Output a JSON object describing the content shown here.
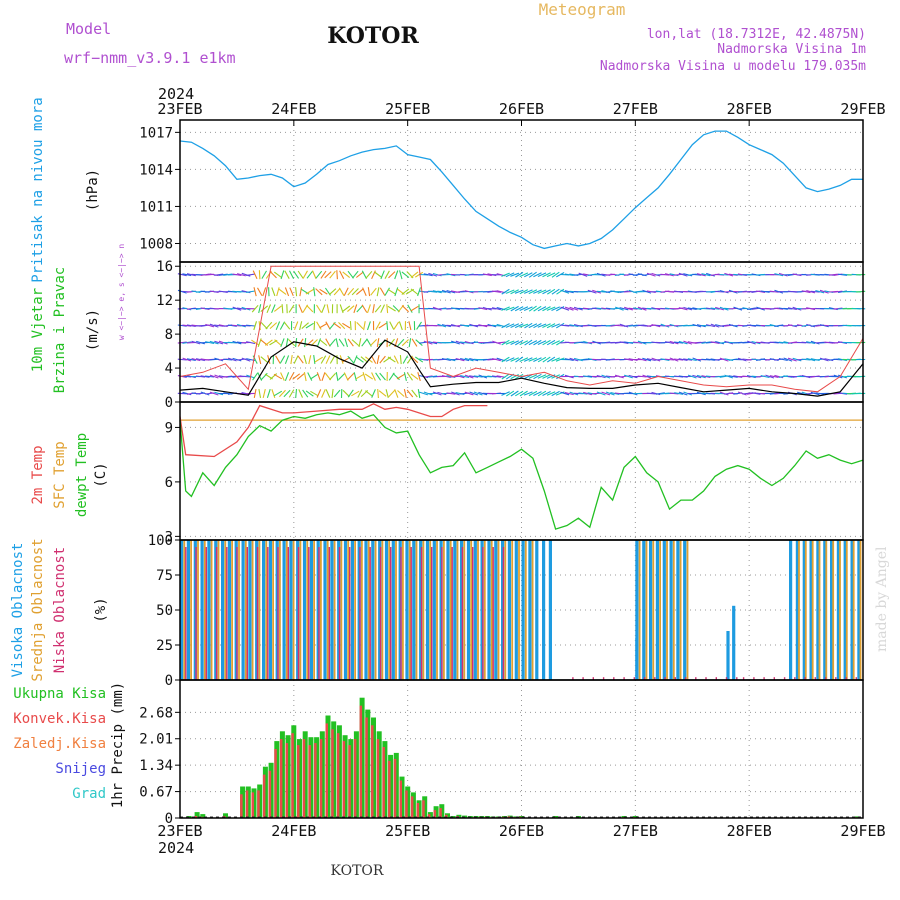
{
  "header": {
    "model_label": "Model",
    "model_value": "wrf−nmm_v3.9.1 e1km",
    "station": "KOTOR",
    "product": "Meteogram",
    "location_line": "lon,lat (18.7312E, 42.4875N)",
    "elevation_line": "Nadmorska Visina 1m",
    "model_elevation_line": "Nadmorska Visina u modelu 179.035m",
    "year_top": "2024",
    "year_bottom": "2024",
    "footer_station": "KOTOR",
    "watermark": "made by Angel"
  },
  "colors": {
    "pressure": "#1ea0e6",
    "t2m": "#e84a4a",
    "sfc_temp": "#e0a030",
    "dewpoint": "#22c022",
    "cloud_high": "#1e9be0",
    "cloud_mid": "#e0a030",
    "cloud_low": "#d03070",
    "precip_total": "#22c022",
    "precip_conv": "#e84a4a",
    "precip_frz": "#f08040",
    "snow": "#4a4ae0",
    "hail": "#30c8c8",
    "violet_text": "#b050d0",
    "gold_text": "#e6b860",
    "wind_speed": "#000000",
    "wind_gust": "#e84a4a"
  },
  "chart_data": [
    {
      "type": "line",
      "panel": "pressure",
      "ylabel_main": "Pritisak na nivou mora",
      "ylabel_unit": "(hPa)",
      "ylim": [
        1006.5,
        1018
      ],
      "yticks": [
        1008,
        1011,
        1014,
        1017
      ],
      "x_days": [
        0,
        0.1,
        0.2,
        0.3,
        0.4,
        0.5,
        0.6,
        0.7,
        0.8,
        0.9,
        1.0,
        1.1,
        1.2,
        1.3,
        1.4,
        1.5,
        1.6,
        1.7,
        1.8,
        1.9,
        2.0,
        2.1,
        2.2,
        2.3,
        2.4,
        2.5,
        2.6,
        2.7,
        2.8,
        2.9,
        3.0,
        3.1,
        3.2,
        3.3,
        3.4,
        3.5,
        3.6,
        3.7,
        3.8,
        3.9,
        4.0,
        4.1,
        4.2,
        4.3,
        4.4,
        4.5,
        4.6,
        4.7,
        4.8,
        4.9,
        5.0,
        5.1,
        5.2,
        5.3,
        5.4,
        5.5,
        5.6,
        5.7,
        5.8,
        5.9,
        6.0
      ],
      "values": [
        1016.3,
        1016.2,
        1015.7,
        1015.1,
        1014.3,
        1013.2,
        1013.3,
        1013.5,
        1013.6,
        1013.3,
        1012.6,
        1012.9,
        1013.6,
        1014.4,
        1014.7,
        1015.1,
        1015.4,
        1015.6,
        1015.7,
        1015.9,
        1015.2,
        1015.0,
        1014.8,
        1013.8,
        1012.7,
        1011.6,
        1010.6,
        1010.0,
        1009.4,
        1008.9,
        1008.5,
        1007.9,
        1007.6,
        1007.8,
        1008.0,
        1007.8,
        1008.0,
        1008.4,
        1009.1,
        1010.0,
        1010.9,
        1011.7,
        1012.5,
        1013.6,
        1014.8,
        1016.0,
        1016.8,
        1017.1,
        1017.1,
        1016.6,
        1016.0,
        1015.6,
        1015.2,
        1014.5,
        1013.5,
        1012.5,
        1012.2,
        1012.4,
        1012.7,
        1013.2,
        1013.2
      ]
    },
    {
      "type": "line",
      "panel": "wind",
      "ylabel_main": "10m Vjetar",
      "ylabel_sub": "Brzina i Pravac",
      "ylabel_unit": "(m/s)",
      "compass_label": "w <−|−> e, s <−|−> n",
      "ylim": [
        0,
        16.5
      ],
      "yticks": [
        0,
        4,
        8,
        12,
        16
      ],
      "x_days": [
        0,
        0.2,
        0.4,
        0.6,
        0.8,
        1.0,
        1.2,
        1.4,
        1.6,
        1.8,
        2.0,
        2.1,
        2.2,
        2.4,
        2.6,
        2.8,
        3.0,
        3.2,
        3.4,
        3.6,
        3.8,
        4.0,
        4.2,
        4.4,
        4.6,
        4.8,
        5.0,
        5.2,
        5.4,
        5.6,
        5.8,
        6.0
      ],
      "series": [
        {
          "name": "speed",
          "values": [
            1.4,
            1.6,
            1.2,
            0.8,
            5.3,
            7.1,
            6.6,
            5.1,
            4.0,
            7.3,
            5.9,
            3.8,
            1.8,
            2.1,
            2.3,
            2.3,
            2.8,
            2.2,
            1.7,
            1.6,
            1.6,
            2.0,
            2.2,
            1.7,
            1.2,
            1.4,
            1.6,
            1.2,
            1.0,
            0.7,
            1.2,
            4.5
          ]
        },
        {
          "name": "gust",
          "values": [
            3.0,
            3.5,
            4.5,
            1.5,
            16,
            16,
            16,
            16,
            16,
            16,
            16,
            16,
            4.0,
            3.0,
            4.0,
            3.5,
            3.0,
            3.5,
            2.5,
            2.0,
            2.5,
            2.2,
            3.0,
            2.5,
            2.0,
            1.8,
            2.0,
            2.0,
            1.5,
            1.2,
            3.0,
            7.5
          ]
        }
      ]
    },
    {
      "type": "line",
      "panel": "temperature",
      "ylabel_lines": [
        "2m Temp",
        "SFC Temp",
        "dewpt Temp"
      ],
      "ylabel_unit": "(C)",
      "ylim": [
        2.8,
        10.4
      ],
      "yticks": [
        3,
        6,
        9
      ],
      "sfc_temp_const": 9.4,
      "series": [
        {
          "name": "2m Temp",
          "x_days": [
            0,
            0.05,
            0.3,
            0.5,
            0.6,
            0.7,
            0.8,
            0.9,
            1.0,
            1.2,
            1.4,
            1.6,
            1.7,
            1.8,
            1.9,
            2.0,
            2.2,
            2.3,
            2.4,
            2.5,
            2.6,
            2.7
          ],
          "values": [
            9.6,
            7.5,
            7.4,
            8.2,
            9.0,
            10.2,
            10.0,
            9.8,
            9.8,
            9.9,
            10.0,
            10.0,
            10.3,
            10.0,
            10.1,
            10.0,
            9.6,
            9.6,
            10.0,
            10.2,
            10.2,
            10.2
          ]
        },
        {
          "name": "dewpt Temp",
          "x_days": [
            0,
            0.05,
            0.1,
            0.2,
            0.3,
            0.4,
            0.5,
            0.6,
            0.7,
            0.8,
            0.9,
            1.0,
            1.1,
            1.2,
            1.3,
            1.4,
            1.5,
            1.6,
            1.7,
            1.8,
            1.9,
            2.0,
            2.1,
            2.2,
            2.3,
            2.4,
            2.5,
            2.6,
            2.7,
            2.8,
            2.9,
            3.0,
            3.1,
            3.2,
            3.3,
            3.4,
            3.5,
            3.6,
            3.7,
            3.8,
            3.9,
            4.0,
            4.1,
            4.2,
            4.3,
            4.4,
            4.5,
            4.6,
            4.7,
            4.8,
            4.9,
            5.0,
            5.1,
            5.2,
            5.3,
            5.4,
            5.5,
            5.6,
            5.7,
            5.8,
            5.9,
            6.0
          ],
          "values": [
            9.4,
            5.5,
            5.2,
            6.5,
            5.8,
            6.8,
            7.5,
            8.5,
            9.1,
            8.8,
            9.4,
            9.6,
            9.5,
            9.7,
            9.8,
            9.7,
            9.9,
            9.5,
            9.7,
            9.0,
            8.7,
            8.8,
            7.5,
            6.5,
            6.8,
            6.9,
            7.6,
            6.5,
            6.8,
            7.1,
            7.4,
            7.8,
            7.3,
            5.5,
            3.4,
            3.6,
            4.0,
            3.5,
            5.7,
            5.0,
            6.8,
            7.4,
            6.5,
            6.0,
            4.5,
            5.0,
            5.0,
            5.5,
            6.3,
            6.7,
            6.9,
            6.7,
            6.2,
            5.8,
            6.2,
            6.9,
            7.7,
            7.3,
            7.5,
            7.2,
            7.0,
            7.2
          ]
        }
      ]
    },
    {
      "type": "bar",
      "panel": "clouds",
      "ylabel_lines": [
        "Visoka Oblacnost",
        "Srednja Oblacnost",
        "Niska Oblacnost"
      ],
      "ylabel_unit": "(%)",
      "ylim": [
        0,
        100
      ],
      "yticks": [
        0,
        25,
        50,
        75,
        100
      ],
      "high_cloud_segments": [
        {
          "from_day": 0.0,
          "to_day": 3.25,
          "value": 100
        },
        {
          "from_day": 4.0,
          "to_day": 4.45,
          "value": 100
        },
        {
          "from_day": 4.0,
          "to_day": 4.02,
          "value": 30
        },
        {
          "from_day": 4.8,
          "to_day": 4.85,
          "value": 35
        },
        {
          "from_day": 4.85,
          "to_day": 4.88,
          "value": 53
        },
        {
          "from_day": 5.35,
          "to_day": 6.0,
          "value": 100
        }
      ],
      "mid_cloud_segments": [
        {
          "from_day": 0.0,
          "to_day": 3.15,
          "value": 100
        },
        {
          "from_day": 4.0,
          "to_day": 4.45,
          "value": 100
        },
        {
          "from_day": 5.4,
          "to_day": 6.0,
          "value": 100
        }
      ],
      "low_cloud_segments": [
        {
          "from_day": 0.0,
          "to_day": 2.9,
          "value": 95
        },
        {
          "from_day": 3.4,
          "to_day": 4.9,
          "value": 2
        },
        {
          "from_day": 4.9,
          "to_day": 6.0,
          "value": 2
        }
      ]
    },
    {
      "type": "bar",
      "panel": "precipitation",
      "legend": [
        "Ukupna Kisa",
        "Konvek.Kisa",
        "Zaledj.Kisa",
        "Snijeg",
        "Grad"
      ],
      "ylabel_unit": "1hr Precip (mm)",
      "ylim": [
        0,
        3.5
      ],
      "yticks": [
        0,
        0.67,
        1.34,
        2.01,
        2.68
      ],
      "x_days": [
        0.08,
        0.15,
        0.2,
        0.4,
        0.55,
        0.6,
        0.65,
        0.7,
        0.75,
        0.8,
        0.85,
        0.9,
        0.95,
        1.0,
        1.05,
        1.1,
        1.15,
        1.2,
        1.25,
        1.3,
        1.35,
        1.4,
        1.45,
        1.5,
        1.55,
        1.6,
        1.65,
        1.7,
        1.75,
        1.8,
        1.85,
        1.9,
        1.95,
        2.0,
        2.05,
        2.1,
        2.15,
        2.2,
        2.25,
        2.3,
        2.35,
        2.4,
        2.45,
        2.5,
        2.55,
        2.6,
        2.65,
        2.7,
        2.75,
        2.8,
        2.85,
        2.9,
        2.95,
        3.0,
        3.3,
        3.5,
        3.9,
        4.0,
        5.95
      ],
      "series": [
        {
          "name": "Ukupna Kisa",
          "values": [
            0.05,
            0.15,
            0.1,
            0.12,
            0.8,
            0.8,
            0.75,
            0.85,
            1.3,
            1.4,
            1.95,
            2.2,
            2.1,
            2.35,
            2.0,
            2.2,
            2.05,
            2.05,
            2.2,
            2.6,
            2.45,
            2.35,
            2.1,
            2.0,
            2.2,
            3.05,
            2.75,
            2.55,
            2.2,
            1.95,
            1.6,
            1.65,
            1.05,
            0.8,
            0.65,
            0.45,
            0.55,
            0.15,
            0.3,
            0.35,
            0.12,
            0.05,
            0.08,
            0.06,
            0.05,
            0.05,
            0.05,
            0.05,
            0.04,
            0.04,
            0.05,
            0.06,
            0.04,
            0.05,
            0.05,
            0.05,
            0.05,
            0.05,
            0.04
          ]
        },
        {
          "name": "Konvek.Kisa",
          "values": [
            0.0,
            0.05,
            0.03,
            0.05,
            0.6,
            0.7,
            0.65,
            0.7,
            1.1,
            1.2,
            1.75,
            2.0,
            1.9,
            2.15,
            1.85,
            2.0,
            1.85,
            1.9,
            2.0,
            2.4,
            2.25,
            2.15,
            1.95,
            1.85,
            2.0,
            2.85,
            2.55,
            2.35,
            2.0,
            1.8,
            1.45,
            1.5,
            0.95,
            0.7,
            0.55,
            0.38,
            0.45,
            0.1,
            0.2,
            0.25,
            0.08,
            0.02,
            0.05,
            0.03,
            0.03,
            0.03,
            0.03,
            0.03,
            0.02,
            0.02,
            0.03,
            0.04,
            0.02,
            0.03,
            0.03,
            0.03,
            0.02,
            0.02,
            0.02
          ]
        }
      ]
    }
  ],
  "x_axis": {
    "day_labels": [
      "23FEB",
      "24FEB",
      "25FEB",
      "26FEB",
      "27FEB",
      "28FEB",
      "29FEB"
    ]
  }
}
